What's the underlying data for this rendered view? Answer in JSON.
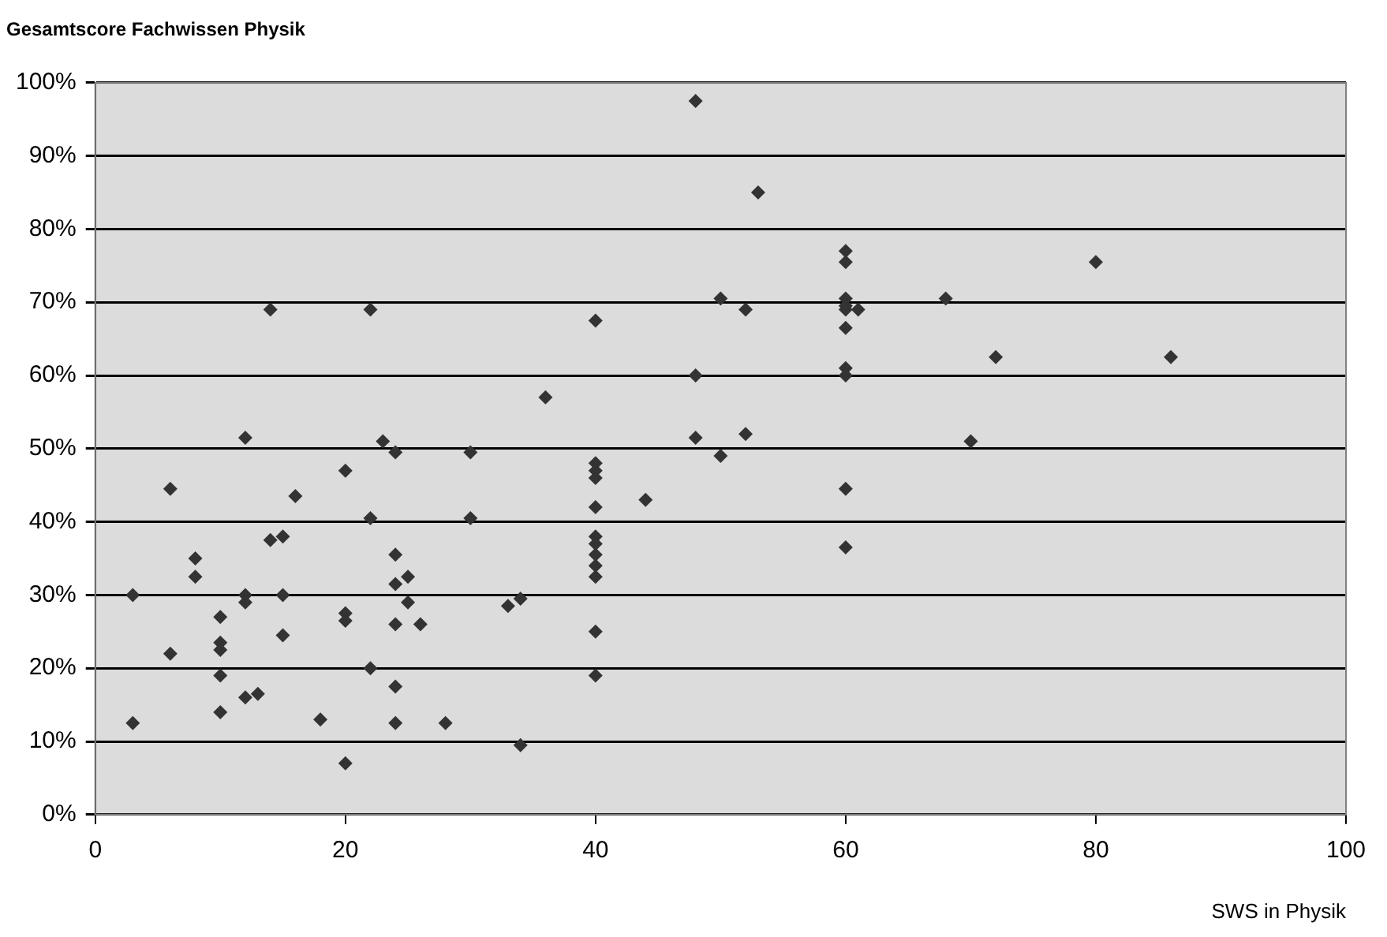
{
  "chart_data": {
    "type": "scatter",
    "title": "Gesamtscore Fachwissen Physik",
    "xlabel": "SWS in Physik",
    "x": [
      3,
      3,
      6,
      6,
      8,
      8,
      10,
      10,
      10,
      10,
      10,
      12,
      12,
      12,
      12,
      13,
      14,
      14,
      15,
      15,
      15,
      16,
      18,
      20,
      20,
      20,
      20,
      22,
      22,
      22,
      23,
      24,
      24,
      24,
      24,
      24,
      24,
      25,
      25,
      26,
      28,
      30,
      30,
      33,
      34,
      34,
      36,
      40,
      40,
      40,
      40,
      40,
      40,
      40,
      40,
      40,
      40,
      40,
      40,
      44,
      48,
      48,
      48,
      50,
      50,
      52,
      52,
      53,
      60,
      60,
      60,
      60,
      60,
      60,
      60,
      60,
      60,
      60,
      61,
      68,
      70,
      72,
      80,
      86
    ],
    "series": [
      {
        "color": "#333333",
        "values": [
          30,
          12.5,
          44.5,
          22,
          35,
          32.5,
          27,
          22.5,
          23.5,
          19,
          14,
          51.5,
          30,
          29,
          16,
          16.5,
          69,
          37.5,
          38,
          30,
          24.5,
          43.5,
          13,
          47,
          27.5,
          26.5,
          7,
          69,
          40.5,
          20,
          51,
          49.5,
          35.5,
          31.5,
          26,
          17.5,
          12.5,
          32.5,
          29,
          26,
          12.5,
          49.5,
          40.5,
          28.5,
          29.5,
          9.5,
          57,
          67.5,
          48,
          47,
          46,
          42,
          38,
          37,
          35.5,
          34,
          32.5,
          25,
          19,
          43,
          97.5,
          60,
          51.5,
          70.5,
          49,
          69,
          52,
          85,
          77,
          75.5,
          70.5,
          69.5,
          69,
          66.5,
          61,
          60,
          44.5,
          36.5,
          69,
          70.5,
          51,
          62.5,
          75.5,
          62.5
        ]
      }
    ],
    "xlim": [
      0,
      100
    ],
    "xticks": [
      0,
      20,
      40,
      60,
      80,
      100
    ],
    "ylim": [
      0,
      100
    ],
    "yticks": [
      {
        "value": 0,
        "label": "0%"
      },
      {
        "value": 10,
        "label": "10%"
      },
      {
        "value": 20,
        "label": "20%"
      },
      {
        "value": 30,
        "label": "30%"
      },
      {
        "value": 40,
        "label": "40%"
      },
      {
        "value": 50,
        "label": "50%"
      },
      {
        "value": 60,
        "label": "60%"
      },
      {
        "value": 70,
        "label": "70%"
      },
      {
        "value": 80,
        "label": "80%"
      },
      {
        "value": 90,
        "label": "90%"
      },
      {
        "value": 100,
        "label": "100%"
      }
    ],
    "grid": "y",
    "legend": false,
    "marker": "diamond"
  }
}
